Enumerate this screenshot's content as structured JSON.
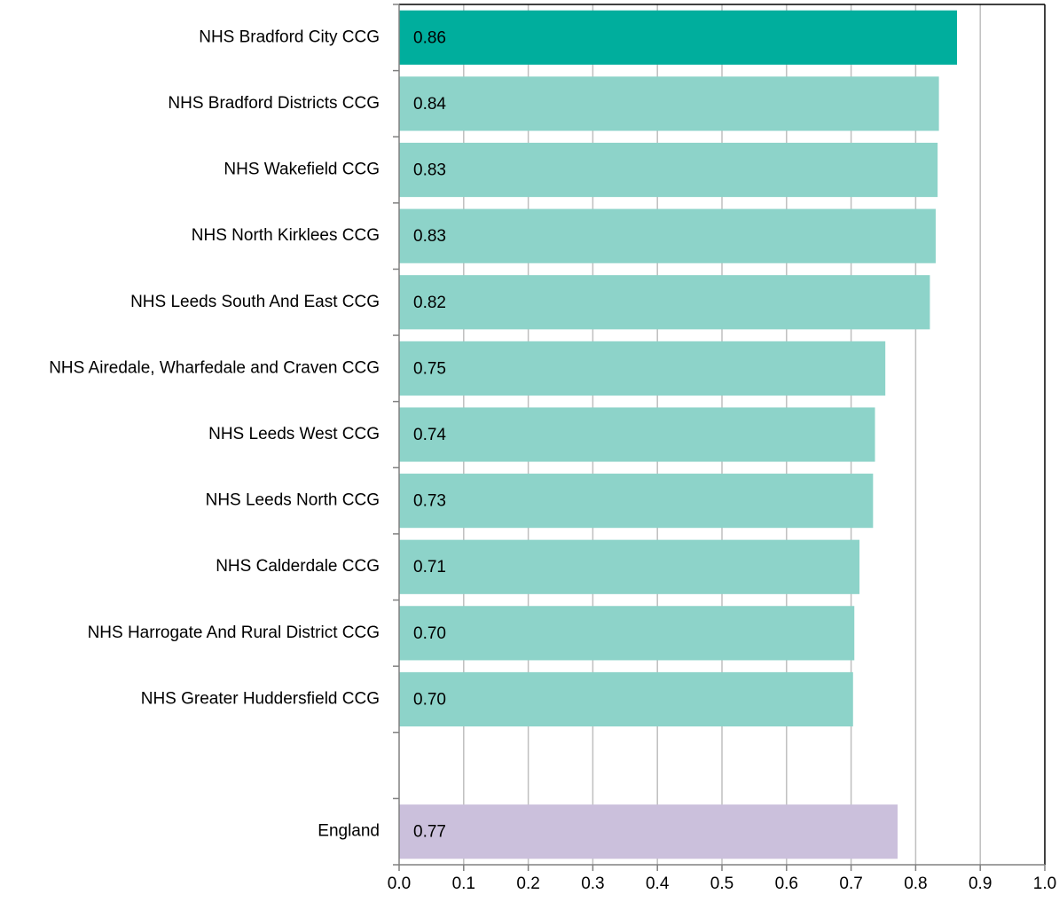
{
  "chart_data": {
    "type": "hbar",
    "categories": [
      "NHS Bradford City CCG",
      "NHS Bradford Districts CCG",
      "NHS Wakefield CCG",
      "NHS North Kirklees CCG",
      "NHS Leeds South And East CCG",
      "NHS Airedale, Wharfedale and Craven CCG",
      "NHS Leeds West CCG",
      "NHS Leeds North CCG",
      "NHS Calderdale CCG",
      "NHS Harrogate And Rural District CCG",
      "NHS Greater Huddersfield CCG",
      null,
      "England"
    ],
    "values": [
      0.864,
      0.836,
      0.834,
      0.831,
      0.822,
      0.753,
      0.737,
      0.734,
      0.713,
      0.705,
      0.703,
      null,
      0.772
    ],
    "value_labels": [
      "0.86",
      "0.84",
      "0.83",
      "0.83",
      "0.82",
      "0.75",
      "0.74",
      "0.73",
      "0.71",
      "0.70",
      "0.70",
      null,
      "0.77"
    ],
    "colors": [
      "#00ae9d",
      "#8dd3c9",
      "#8dd3c9",
      "#8dd3c9",
      "#8dd3c9",
      "#8dd3c9",
      "#8dd3c9",
      "#8dd3c9",
      "#8dd3c9",
      "#8dd3c9",
      "#8dd3c9",
      null,
      "#cbc0dc"
    ],
    "xlim": [
      0,
      1
    ],
    "xticks": [
      {
        "value": 0,
        "label": "0.0"
      },
      0.1,
      0.2,
      0.3,
      0.4,
      0.5,
      0.6,
      0.7,
      0.8,
      0.9,
      {
        "value": 1,
        "label": "1.0"
      }
    ],
    "grid": true
  }
}
